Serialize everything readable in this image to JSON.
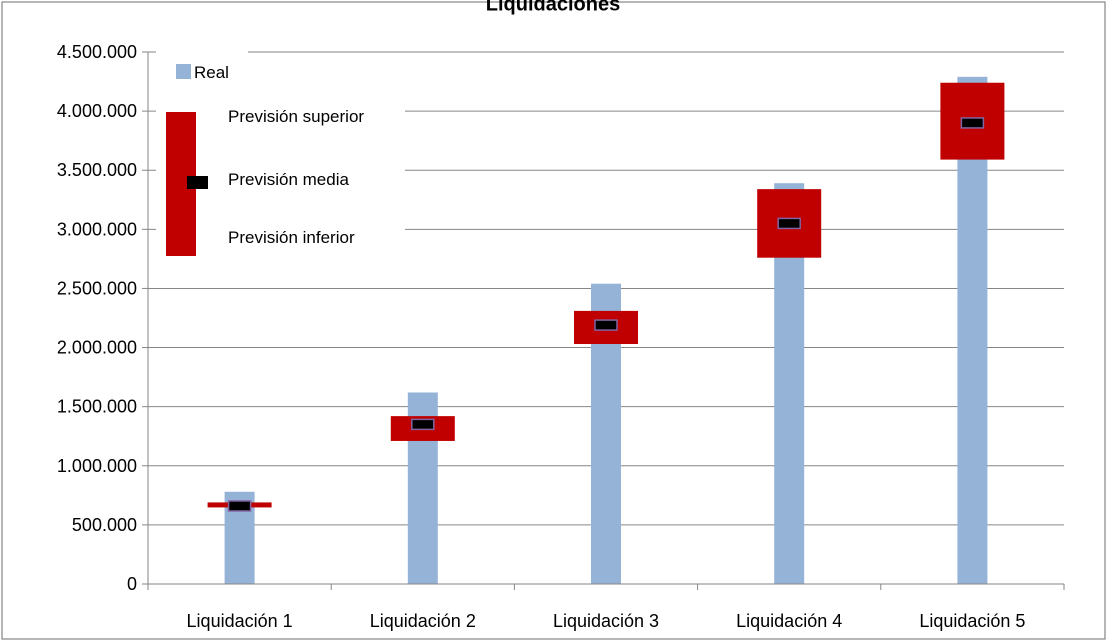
{
  "chart_data": {
    "type": "bar",
    "title": "Liquidaciones",
    "categories": [
      "Liquidación 1",
      "Liquidación 2",
      "Liquidación 3",
      "Liquidación 4",
      "Liquidación 5"
    ],
    "series": [
      {
        "name": "Real",
        "type": "bar",
        "values": [
          780000,
          1620000,
          2540000,
          3390000,
          4290000
        ]
      },
      {
        "name": "Previsión superior",
        "type": "range-high",
        "values": [
          690000,
          1420000,
          2310000,
          3340000,
          4240000
        ]
      },
      {
        "name": "Previsión media",
        "type": "marker",
        "values": [
          660000,
          1350000,
          2190000,
          3050000,
          3900000
        ]
      },
      {
        "name": "Previsión inferior",
        "type": "range-low",
        "values": [
          650000,
          1210000,
          2030000,
          2760000,
          3590000
        ]
      }
    ],
    "yticks": [
      "0",
      "500.000",
      "1.000.000",
      "1.500.000",
      "2.000.000",
      "2.500.000",
      "3.000.000",
      "3.500.000",
      "4.000.000",
      "4.500.000"
    ],
    "ylim": [
      0,
      4500000
    ],
    "grid": true,
    "legend_position": "top-left",
    "colors": {
      "real": "#95B3D7",
      "range": "#C00000",
      "marker": "#000000",
      "marker_outline": "#8064A2",
      "grid": "#868686"
    }
  }
}
